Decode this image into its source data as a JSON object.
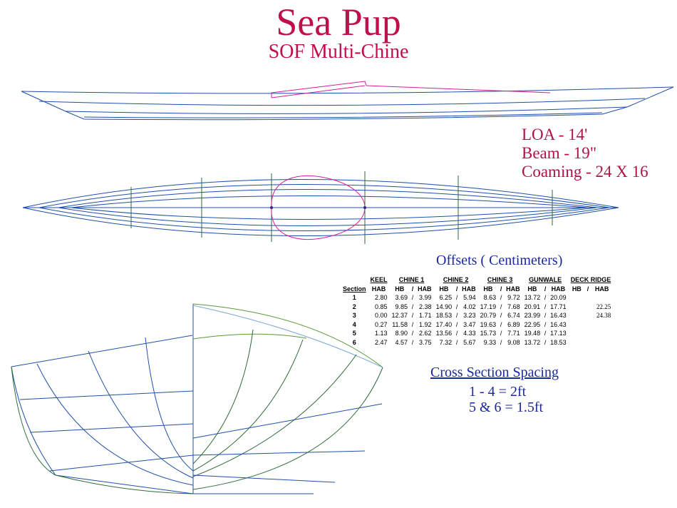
{
  "title": "Sea Pup",
  "subtitle": "SOF Multi-Chine",
  "specs": {
    "loa": "LOA - 14'",
    "beam": "Beam - 19\"",
    "coaming": "Coaming - 24 X 16"
  },
  "offsets": {
    "title": "Offsets ( Centimeters)",
    "section_header": "Section",
    "groups": [
      "KEEL",
      "CHINE 1",
      "CHINE 2",
      "CHINE 3",
      "GUNWALE",
      "DECK RIDGE"
    ],
    "hb": "HB",
    "hab": "HAB",
    "slash": "/",
    "rows": [
      {
        "section": "1",
        "keel": "2.80",
        "c1_hb": "3.69",
        "c1_hab": "3.99",
        "c2_hb": "6.25",
        "c2_hab": "5.94",
        "c3_hb": "8.63",
        "c3_hab": "9.72",
        "gw_hb": "13.72",
        "gw_hab": "20.09",
        "deck": ""
      },
      {
        "section": "2",
        "keel": "0.85",
        "c1_hb": "9.85",
        "c1_hab": "2.38",
        "c2_hb": "14.90",
        "c2_hab": "4.02",
        "c3_hb": "17.19",
        "c3_hab": "7.68",
        "gw_hb": "20.91",
        "gw_hab": "17.71",
        "deck": "22.25"
      },
      {
        "section": "3",
        "keel": "0.00",
        "c1_hb": "12.37",
        "c1_hab": "1.71",
        "c2_hb": "18.53",
        "c2_hab": "3.23",
        "c3_hb": "20.79",
        "c3_hab": "6.74",
        "gw_hb": "23.99",
        "gw_hab": "16.43",
        "deck": "24.38"
      },
      {
        "section": "4",
        "keel": "0.27",
        "c1_hb": "11.58",
        "c1_hab": "1.92",
        "c2_hb": "17.40",
        "c2_hab": "3.47",
        "c3_hb": "19.63",
        "c3_hab": "6.89",
        "gw_hb": "22.95",
        "gw_hab": "16.43",
        "deck": ""
      },
      {
        "section": "5",
        "keel": "1.13",
        "c1_hb": "8.90",
        "c1_hab": "2.62",
        "c2_hb": "13.56",
        "c2_hab": "4.33",
        "c3_hb": "15.73",
        "c3_hab": "7.71",
        "gw_hb": "19.48",
        "gw_hab": "17.13",
        "deck": ""
      },
      {
        "section": "6",
        "keel": "2.47",
        "c1_hb": "4.57",
        "c1_hab": "3.75",
        "c2_hb": "7.32",
        "c2_hab": "5.67",
        "c3_hb": "9.33",
        "c3_hab": "9.08",
        "gw_hb": "13.72",
        "gw_hab": "18.53",
        "deck": ""
      }
    ]
  },
  "spacing": {
    "title": "Cross Section Spacing",
    "line1": "1 - 4 = 2ft",
    "line2": "5 & 6 = 1.5ft"
  },
  "colors": {
    "title": "#c0104a",
    "spec": "#b01248",
    "blue_text": "#1a2a9a",
    "line_blue": "#1f50a8",
    "line_green": "#2f6a3a",
    "coaming": "#d0209a",
    "light_blue": "#7aa6d8",
    "green_line": "#5a9a3a"
  }
}
